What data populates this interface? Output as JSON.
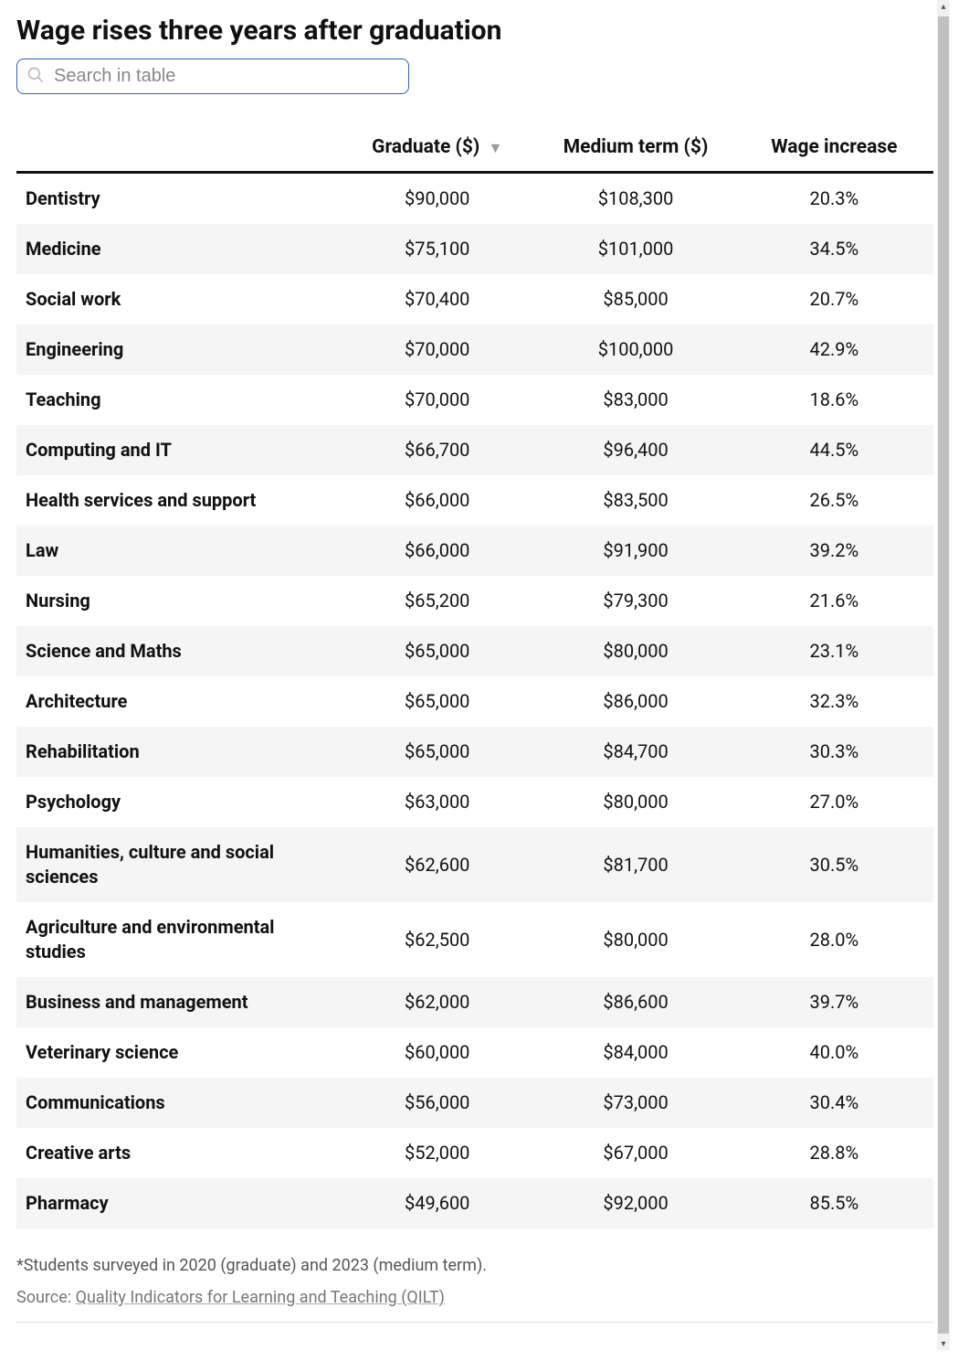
{
  "title": "Wage rises three years after graduation",
  "search": {
    "placeholder": "Search in table",
    "value": ""
  },
  "table": {
    "type": "table",
    "columns": [
      {
        "key": "field",
        "label": "",
        "align": "left",
        "width_pct": 35
      },
      {
        "key": "graduate",
        "label": "Graduate ($)",
        "align": "center",
        "width_pct": 21.6,
        "sorted": "desc"
      },
      {
        "key": "medium",
        "label": "Medium term ($)",
        "align": "center",
        "width_pct": 21.6
      },
      {
        "key": "increase",
        "label": "Wage increase",
        "align": "center",
        "width_pct": 21.6
      }
    ],
    "sort_indicator_glyph": "▼",
    "sort_indicator_color": "#999999",
    "header_border_color": "#111111",
    "row_stripe_color": "#f5f5f5",
    "background_color": "#ffffff",
    "header_fontsize": 21,
    "body_fontsize": 20,
    "rows": [
      {
        "field": "Dentistry",
        "graduate": "$90,000",
        "medium": "$108,300",
        "increase": "20.3%"
      },
      {
        "field": "Medicine",
        "graduate": "$75,100",
        "medium": "$101,000",
        "increase": "34.5%"
      },
      {
        "field": "Social work",
        "graduate": "$70,400",
        "medium": "$85,000",
        "increase": "20.7%"
      },
      {
        "field": "Engineering",
        "graduate": "$70,000",
        "medium": "$100,000",
        "increase": "42.9%"
      },
      {
        "field": "Teaching",
        "graduate": "$70,000",
        "medium": "$83,000",
        "increase": "18.6%"
      },
      {
        "field": "Computing and IT",
        "graduate": "$66,700",
        "medium": "$96,400",
        "increase": "44.5%"
      },
      {
        "field": "Health services and support",
        "graduate": "$66,000",
        "medium": "$83,500",
        "increase": "26.5%"
      },
      {
        "field": "Law",
        "graduate": "$66,000",
        "medium": "$91,900",
        "increase": "39.2%"
      },
      {
        "field": "Nursing",
        "graduate": "$65,200",
        "medium": "$79,300",
        "increase": "21.6%"
      },
      {
        "field": "Science and Maths",
        "graduate": "$65,000",
        "medium": "$80,000",
        "increase": "23.1%"
      },
      {
        "field": "Architecture",
        "graduate": "$65,000",
        "medium": "$86,000",
        "increase": "32.3%"
      },
      {
        "field": "Rehabilitation",
        "graduate": "$65,000",
        "medium": "$84,700",
        "increase": "30.3%"
      },
      {
        "field": "Psychology",
        "graduate": "$63,000",
        "medium": "$80,000",
        "increase": "27.0%"
      },
      {
        "field": "Humanities, culture and social sciences",
        "graduate": "$62,600",
        "medium": "$81,700",
        "increase": "30.5%"
      },
      {
        "field": "Agriculture and environmental studies",
        "graduate": "$62,500",
        "medium": "$80,000",
        "increase": "28.0%"
      },
      {
        "field": "Business and management",
        "graduate": "$62,000",
        "medium": "$86,600",
        "increase": "39.7%"
      },
      {
        "field": "Veterinary science",
        "graduate": "$60,000",
        "medium": "$84,000",
        "increase": "40.0%"
      },
      {
        "field": "Communications",
        "graduate": "$56,000",
        "medium": "$73,000",
        "increase": "30.4%"
      },
      {
        "field": "Creative arts",
        "graduate": "$52,000",
        "medium": "$67,000",
        "increase": "28.8%"
      },
      {
        "field": "Pharmacy",
        "graduate": "$49,600",
        "medium": "$92,000",
        "increase": "85.5%"
      }
    ]
  },
  "footnote": "*Students surveyed in 2020 (graduate) and 2023 (medium term).",
  "source": {
    "prefix": "Source: ",
    "link_text": "Quality Indicators for Learning and Teaching (QILT)"
  },
  "colors": {
    "text": "#111111",
    "muted": "#555555",
    "border_input": "#2f5fd0",
    "scrollbar_track": "#f1f1f1",
    "scrollbar_thumb": "#c0c0c0"
  },
  "fonts": {
    "title_size_pt": 30,
    "body_size_pt": 20
  }
}
